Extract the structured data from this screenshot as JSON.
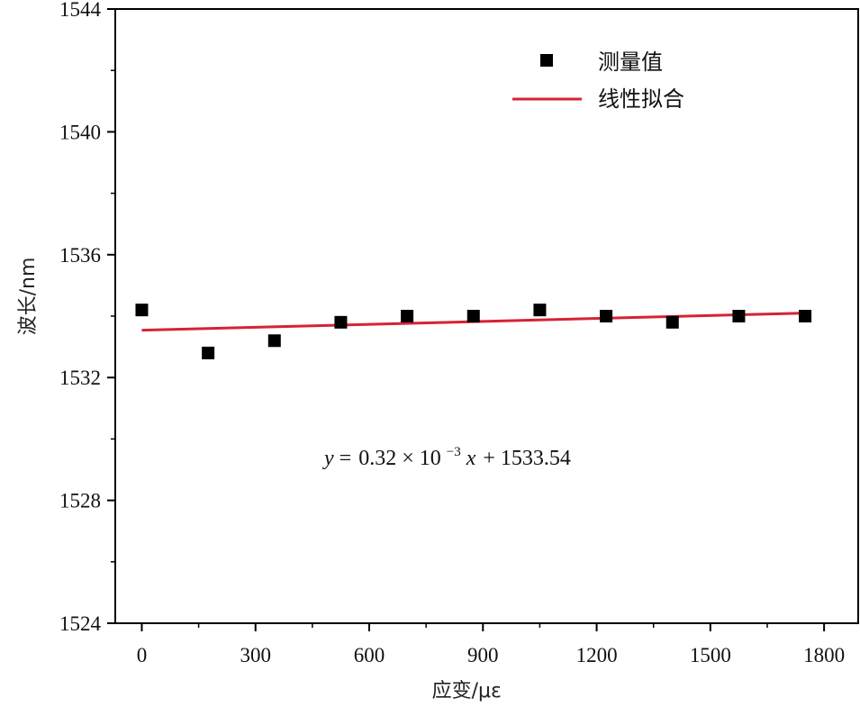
{
  "chart_data": {
    "type": "scatter",
    "xlabel": "应变/με",
    "ylabel": "波长/nm",
    "xlim": [
      -70,
      1890
    ],
    "ylim": [
      1524,
      1544
    ],
    "xticks": [
      0,
      300,
      600,
      900,
      1200,
      1500,
      1800
    ],
    "yticks": [
      1524,
      1528,
      1532,
      1536,
      1540,
      1544
    ],
    "grid": false,
    "legend_position": "top-right",
    "series": [
      {
        "name": "测量值",
        "kind": "scatter",
        "marker": "square",
        "color": "#000000",
        "x": [
          0,
          175,
          350,
          525,
          700,
          875,
          1050,
          1225,
          1400,
          1575,
          1750
        ],
        "y": [
          1534.2,
          1532.8,
          1533.2,
          1533.8,
          1534.0,
          1534.0,
          1534.2,
          1534.0,
          1533.8,
          1534.0,
          1534.0
        ]
      },
      {
        "name": "线性拟合",
        "kind": "line",
        "color": "#d62236",
        "x": [
          0,
          1750
        ],
        "y": [
          1533.54,
          1534.1
        ]
      }
    ],
    "annotation": {
      "var_y": "y",
      "equals": "=",
      "coef": "0.32 × 10",
      "exp": "−3",
      "var_x": "x",
      "rest": "+ 1533.54"
    }
  }
}
